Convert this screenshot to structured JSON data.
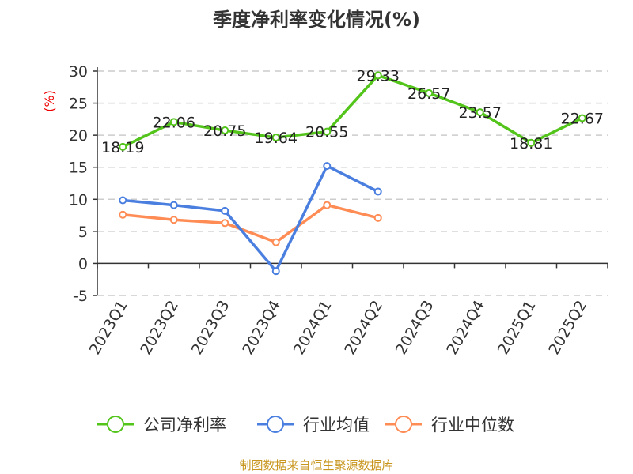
{
  "chart_data": {
    "type": "line",
    "title": "季度净利率变化情况(%)",
    "ylabel": "(%)",
    "xlabel": "",
    "ylim": [
      -5,
      30
    ],
    "yticks": [
      "-5",
      "0",
      "5",
      "10",
      "15",
      "20",
      "25",
      "30"
    ],
    "grid": true,
    "legend_position": "bottom",
    "categories": [
      "2023Q1",
      "2023Q2",
      "2023Q3",
      "2023Q4",
      "2024Q1",
      "2024Q2",
      "2024Q3",
      "2024Q4",
      "2025Q1",
      "2025Q2"
    ],
    "series": [
      {
        "name": "公司净利率",
        "color": "#52c41a",
        "values": [
          18.19,
          22.06,
          20.75,
          19.64,
          20.55,
          29.33,
          26.57,
          23.57,
          18.81,
          22.67
        ],
        "labels": [
          "18.19",
          "22.06",
          "20.75",
          "19.64",
          "20.55",
          "29.33",
          "26.57",
          "23.57",
          "18.81",
          "22.67"
        ]
      },
      {
        "name": "行业均值",
        "color": "#4a7fe0",
        "values": [
          9.85,
          9.1,
          8.2,
          -1.2,
          15.2,
          11.2,
          null,
          null,
          null,
          null
        ]
      },
      {
        "name": "行业中位数",
        "color": "#ff8c55",
        "values": [
          7.6,
          6.8,
          6.3,
          3.3,
          9.1,
          7.1,
          null,
          null,
          null,
          null
        ]
      }
    ],
    "source": "制图数据来自恒生聚源数据库"
  }
}
